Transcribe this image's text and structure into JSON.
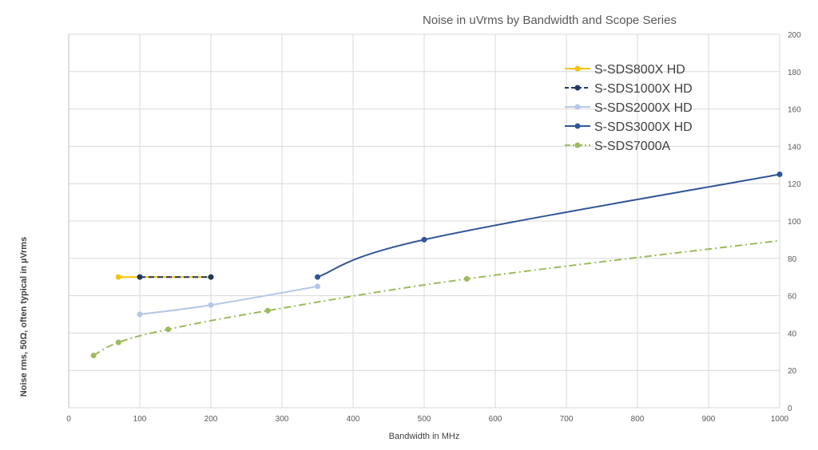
{
  "chart_data": {
    "type": "line",
    "title": "Noise in uVrms by Bandwidth and Scope Series",
    "xlabel": "Bandwidth in MHz",
    "ylabel": "Noise rms, 50Ω, often typical in µVrms",
    "xlim": [
      0,
      1000
    ],
    "ylim": [
      0,
      200
    ],
    "x_ticks": [
      0,
      100,
      200,
      300,
      400,
      500,
      600,
      700,
      800,
      900,
      1000
    ],
    "y_ticks": [
      0,
      20,
      40,
      60,
      80,
      100,
      120,
      140,
      160,
      180,
      200
    ],
    "y_axis_side": "right",
    "grid": true,
    "legend_position": "top-right",
    "series": [
      {
        "name": "S-SDS800X HD",
        "color": "#ffc000",
        "dash": "solid",
        "x": [
          70,
          100,
          200
        ],
        "y": [
          70,
          70,
          70
        ]
      },
      {
        "name": "S-SDS1000X HD",
        "color": "#203864",
        "dash": "dashed",
        "x": [
          100,
          200
        ],
        "y": [
          70,
          70
        ]
      },
      {
        "name": "S-SDS2000X HD",
        "color": "#b4c7e7",
        "dash": "solid",
        "x": [
          100,
          200,
          350
        ],
        "y": [
          50,
          55,
          65
        ]
      },
      {
        "name": "S-SDS3000X HD",
        "color": "#2f5597",
        "dash": "solid",
        "x": [
          350,
          500,
          1000
        ],
        "y": [
          70,
          90,
          125
        ]
      },
      {
        "name": "S-SDS7000A",
        "color": "#9bbb59",
        "dash": "dashdot",
        "x": [
          35,
          70,
          140,
          280,
          560,
          1000
        ],
        "y": [
          28,
          35,
          42,
          52,
          69,
          89.5
        ],
        "markers": [
          true,
          true,
          true,
          true,
          true,
          false
        ]
      }
    ]
  }
}
